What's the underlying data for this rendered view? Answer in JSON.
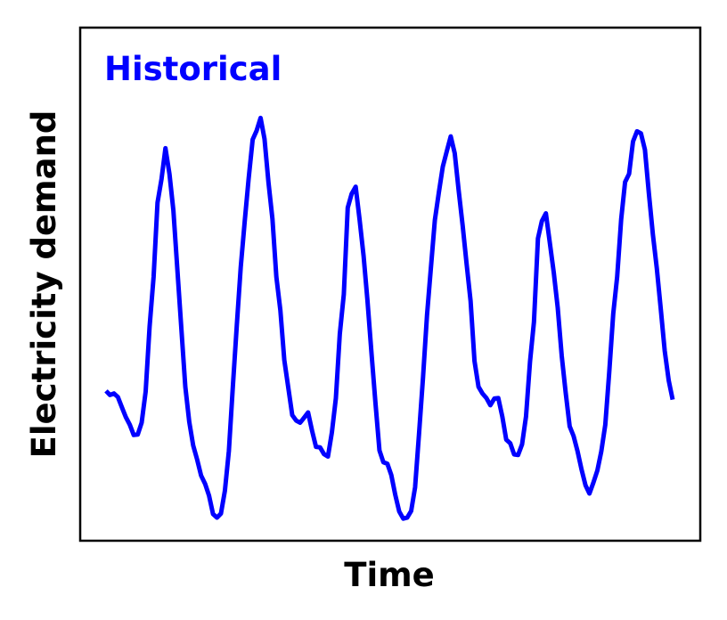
{
  "chart_data": {
    "type": "line",
    "title": "",
    "xlabel": "Time",
    "ylabel": "Electricity demand",
    "annotation": "Historical",
    "grid": false,
    "show_ticks": false,
    "colors": {
      "series": "#0000ff",
      "annotation": "#0000ff",
      "axes": "#000000",
      "background": "#ffffff"
    },
    "xlim": [
      0,
      140
    ],
    "ylim": [
      0,
      100
    ],
    "series": [
      {
        "values": [
          29.2,
          28.4,
          28.7,
          28.0,
          26.0,
          24.1,
          22.6,
          20.6,
          20.7,
          23.0,
          29.1,
          41.7,
          51.4,
          65.9,
          70.5,
          76.5,
          71.5,
          64.4,
          52.8,
          41.5,
          30.0,
          23.2,
          18.6,
          15.8,
          12.7,
          11.1,
          8.8,
          5.2,
          4.5,
          5.3,
          9.7,
          17.5,
          29.9,
          42.0,
          53.3,
          62.3,
          70.6,
          78.2,
          79.9,
          82.4,
          78.3,
          69.9,
          62.7,
          51.4,
          44.9,
          35.2,
          29.8,
          24.5,
          23.4,
          23.0,
          24.0,
          25.0,
          21.4,
          18.3,
          18.2,
          16.9,
          16.4,
          21.1,
          27.8,
          40.3,
          48.0,
          64.9,
          67.6,
          69.0,
          62.6,
          55.5,
          46.7,
          36.5,
          26.9,
          17.6,
          15.3,
          15.0,
          12.8,
          8.9,
          5.7,
          4.3,
          4.5,
          5.8,
          10.4,
          21.0,
          31.8,
          44.0,
          53.3,
          62.5,
          67.9,
          72.9,
          75.9,
          78.8,
          75.5,
          68.3,
          61.4,
          54.0,
          46.7,
          35.0,
          30.0,
          28.7,
          27.8,
          26.4,
          27.7,
          27.8,
          24.2,
          19.7,
          19.0,
          16.8,
          16.7,
          18.8,
          24.2,
          34.9,
          42.6,
          58.9,
          62.3,
          63.8,
          58.1,
          52.2,
          45.4,
          36.0,
          28.9,
          22.3,
          20.4,
          17.4,
          13.9,
          10.8,
          9.2,
          11.3,
          13.7,
          17.4,
          22.6,
          32.8,
          44.2,
          51.4,
          62.6,
          69.9,
          71.5,
          77.8,
          79.8,
          79.4,
          76.2,
          67.7,
          59.7,
          53.1,
          45.1,
          37.0,
          31.2,
          27.5
        ]
      }
    ]
  }
}
